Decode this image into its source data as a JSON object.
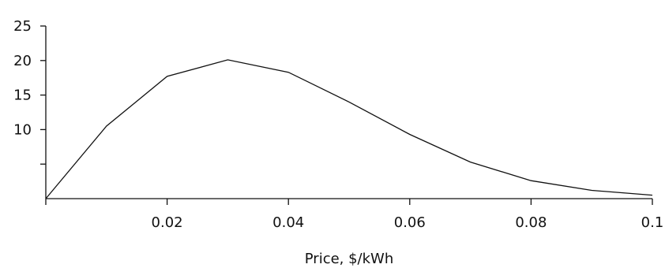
{
  "chart_data": {
    "type": "line",
    "title": "",
    "xlabel": "Price, $/kWh",
    "ylabel": "",
    "xlim": [
      0,
      0.1
    ],
    "ylim": [
      0,
      25
    ],
    "x_ticks": [
      0,
      0.02,
      0.04,
      0.06,
      0.08,
      0.1
    ],
    "x_tick_labels": [
      "",
      "0.02",
      "0.04",
      "0.06",
      "0.08",
      "0.1"
    ],
    "y_ticks": [
      0,
      5,
      10,
      15,
      20,
      25
    ],
    "y_tick_labels": [
      "",
      "",
      "10",
      "15",
      "20",
      "25"
    ],
    "grid": false,
    "legend": "none",
    "series": [
      {
        "x": [
          0,
          0.01,
          0.02,
          0.03,
          0.04,
          0.05,
          0.06,
          0.07,
          0.08,
          0.09,
          0.1
        ],
        "values": [
          0,
          10.5,
          17.7,
          20.1,
          18.3,
          14.0,
          9.3,
          5.3,
          2.6,
          1.2,
          0.5
        ]
      }
    ]
  }
}
